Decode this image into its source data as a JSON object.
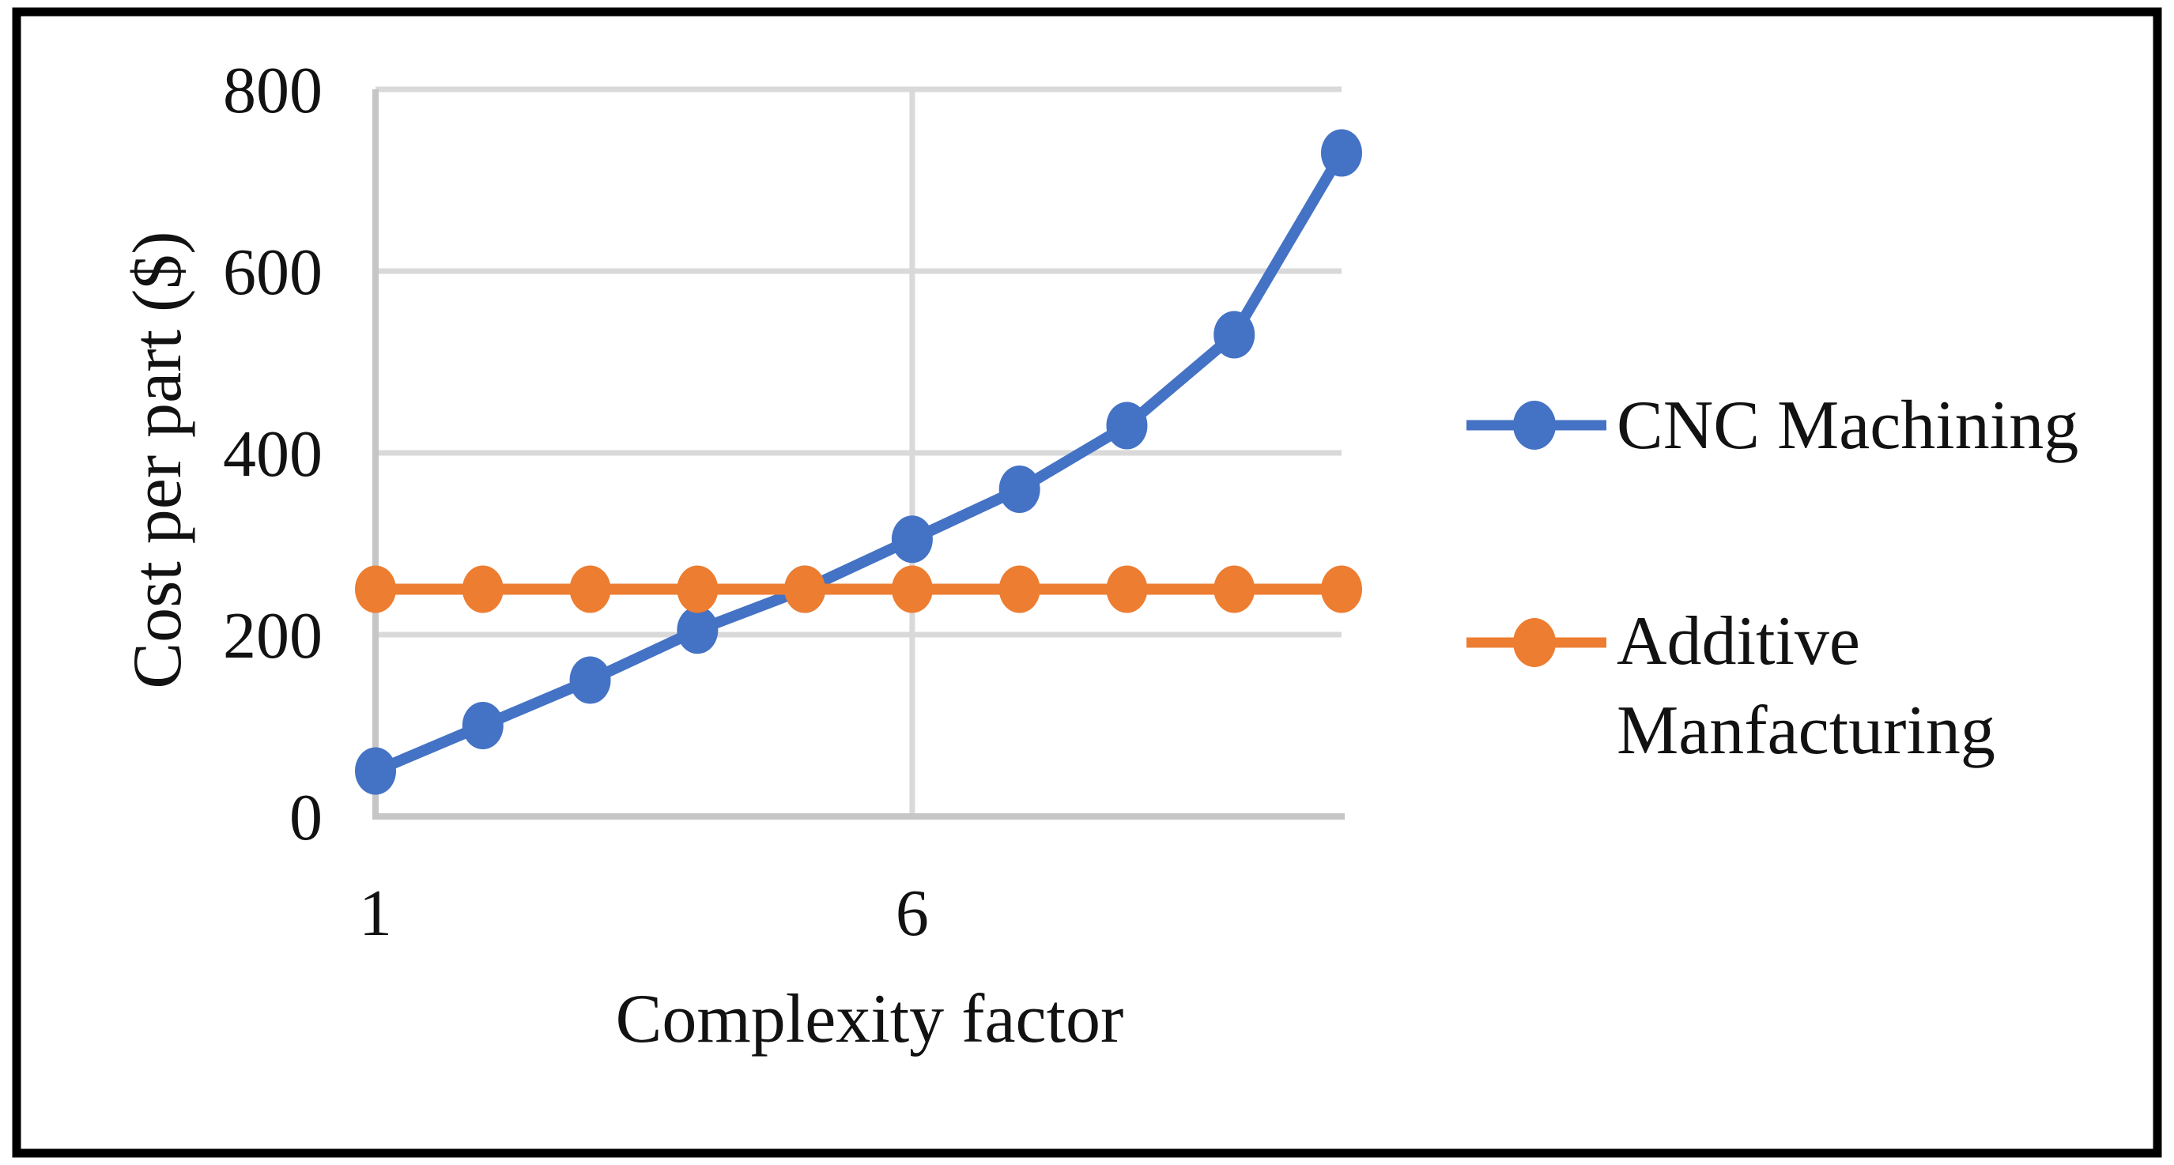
{
  "figure": {
    "background": "#ffffff",
    "border_color": "#000000"
  },
  "chart_data": {
    "type": "line",
    "x": [
      1,
      2,
      3,
      4,
      5,
      6,
      7,
      8,
      9,
      10
    ],
    "series": [
      {
        "name": "CNC Machining",
        "color": "#4472C4",
        "values": [
          50,
          100,
          150,
          205,
          250,
          305,
          360,
          430,
          530,
          730
        ]
      },
      {
        "name": "Additive Manfacturing",
        "color": "#ED7D31",
        "values": [
          250,
          250,
          250,
          250,
          250,
          250,
          250,
          250,
          250,
          250
        ]
      }
    ],
    "title": "",
    "xlabel": "Complexity factor",
    "ylabel": "Cost per part ($)",
    "xlim": [
      1,
      10
    ],
    "ylim": [
      0,
      800
    ],
    "yticks": [
      0,
      200,
      400,
      600,
      800
    ],
    "ytick_labels": [
      "0",
      "200",
      "400",
      "600",
      "800"
    ],
    "xticks": [
      1,
      6
    ],
    "xtick_labels": [
      "1",
      "6"
    ],
    "grid": {
      "horizontal": true,
      "vertical_at": [
        6
      ],
      "gridline_color": "#D9D9D9",
      "axis_color": "#C6C6C6"
    },
    "legend": {
      "position": "right",
      "entries": [
        {
          "series": "CNC Machining",
          "label_lines": [
            "CNC Machining"
          ]
        },
        {
          "series": "Additive Manfacturing",
          "label_lines": [
            "Additive",
            "Manfacturing"
          ]
        }
      ]
    }
  }
}
